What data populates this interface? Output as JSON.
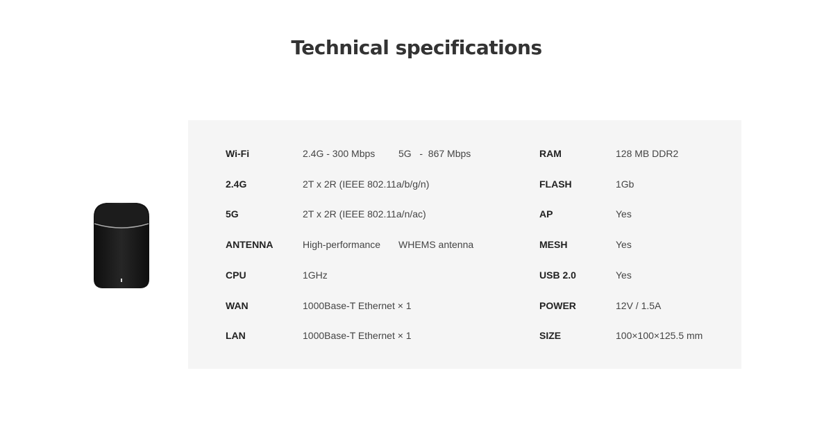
{
  "title": "Technical specifications",
  "left_specs": [
    {
      "label": "Wi-Fi",
      "value": "2.4G - 300 Mbps",
      "value2": "5G   -  867 Mbps"
    },
    {
      "label": "2.4G",
      "value": "2T x 2R (IEEE 802.11a/b/g/n)"
    },
    {
      "label": "5G",
      "value": "2T x 2R (IEEE 802.11a/n/ac)"
    },
    {
      "label": "ANTENNA",
      "value": "High-performance",
      "value2": "WHEMS antenna"
    },
    {
      "label": "CPU",
      "value": "1GHz"
    },
    {
      "label": "WAN",
      "value": "1000Base-T Ethernet × 1"
    },
    {
      "label": "LAN",
      "value": "1000Base-T Ethernet × 1"
    }
  ],
  "right_specs": [
    {
      "label": "RAM",
      "value": "128 MB DDR2"
    },
    {
      "label": "FLASH",
      "value": "1Gb"
    },
    {
      "label": "AP",
      "value": "Yes"
    },
    {
      "label": "MESH",
      "value": "Yes"
    },
    {
      "label": "USB 2.0",
      "value": "Yes"
    },
    {
      "label": "POWER",
      "value": "12V / 1.5A"
    },
    {
      "label": "SIZE",
      "value": "100×100×125.5 mm"
    }
  ],
  "colors": {
    "panel_bg": "#f5f5f5",
    "device": "#1a1a1a"
  }
}
